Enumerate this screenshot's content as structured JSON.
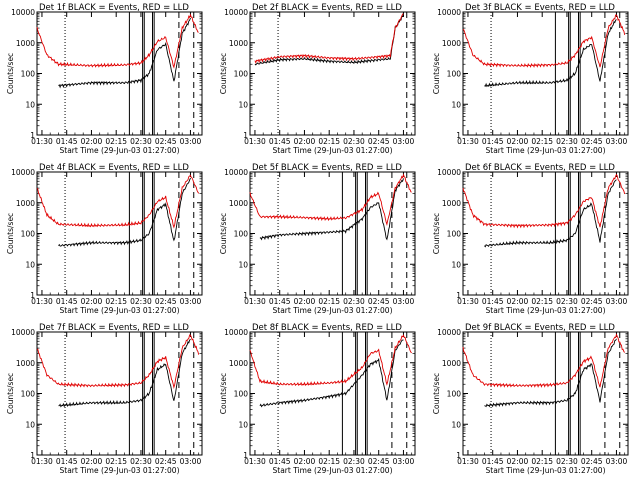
{
  "figure": {
    "x_tick_labels": [
      "01:30",
      "01:45",
      "02:00",
      "02:15",
      "02:30",
      "02:45",
      "03:00"
    ],
    "y_tick_labels": [
      "1",
      "10",
      "100",
      "1000",
      "10000"
    ],
    "y_axis_label": "Counts/sec",
    "x_axis_label": "Start Time (29-Jun-03 01:27:00)",
    "series_colors": {
      "events": "#000000",
      "lld": "#e00000"
    }
  },
  "chart_data": [
    {
      "type": "line",
      "title": "Det 1f BLACK = Events, RED = LLD",
      "xlabel": "Start Time (29-Jun-03 01:27:00)",
      "ylabel": "Counts/sec",
      "x_unit": "time (hh:mm)",
      "xlim": [
        "01:27",
        "03:07"
      ],
      "ylim": [
        1,
        10000
      ],
      "y_scale": "log",
      "x_ticks": [
        "01:30",
        "01:45",
        "02:00",
        "02:15",
        "02:30",
        "02:45",
        "03:00"
      ],
      "y_ticks": [
        1,
        10,
        100,
        1000,
        10000
      ],
      "dotted_vline": "01:44",
      "solid_vlines": [
        "02:23",
        "02:31",
        "02:32",
        "02:37",
        "02:38"
      ],
      "dashed_vlines": [
        "02:53",
        "03:02"
      ],
      "series": [
        {
          "color": "black",
          "x": [
            "01:40",
            "02:00",
            "02:20",
            "02:30",
            "02:35",
            "02:40",
            "02:45",
            "02:50",
            "02:55",
            "03:00"
          ],
          "y": [
            40,
            50,
            50,
            60,
            100,
            600,
            900,
            55,
            2000,
            6000
          ]
        },
        {
          "color": "red",
          "x": [
            "01:27",
            "01:33",
            "01:40",
            "02:00",
            "02:20",
            "02:30",
            "02:35",
            "02:40",
            "02:45",
            "02:50",
            "02:55",
            "03:00",
            "03:05"
          ],
          "y": [
            3000,
            400,
            200,
            180,
            190,
            220,
            400,
            1100,
            1500,
            160,
            3000,
            8000,
            2000
          ]
        }
      ]
    },
    {
      "type": "line",
      "title": "Det 2f BLACK = Events, RED = LLD",
      "xlabel": "Start Time (29-Jun-03 01:27:00)",
      "ylabel": "Counts/sec",
      "x_unit": "time (hh:mm)",
      "xlim": [
        "01:27",
        "03:07"
      ],
      "ylim": [
        1,
        10000
      ],
      "y_scale": "log",
      "x_ticks": [
        "01:30",
        "01:45",
        "02:00",
        "02:15",
        "02:30",
        "02:45",
        "03:00"
      ],
      "y_ticks": [
        1,
        10,
        100,
        1000,
        10000
      ],
      "dotted_vline": "01:44",
      "solid_vlines": [],
      "dashed_vlines": [
        "03:02"
      ],
      "series": [
        {
          "color": "black",
          "x": [
            "01:30",
            "01:45",
            "02:00",
            "02:15",
            "02:30",
            "02:45",
            "02:52",
            "02:55",
            "03:00"
          ],
          "y": [
            200,
            280,
            300,
            250,
            230,
            280,
            300,
            3000,
            8000
          ]
        },
        {
          "color": "red",
          "x": [
            "01:30",
            "01:45",
            "02:00",
            "02:15",
            "02:30",
            "02:45",
            "02:52",
            "02:55",
            "03:00"
          ],
          "y": [
            250,
            350,
            380,
            320,
            300,
            350,
            380,
            3000,
            9000
          ]
        }
      ]
    },
    {
      "type": "line",
      "title": "Det 3f BLACK = Events, RED = LLD",
      "xlabel": "Start Time (29-Jun-03 01:27:00)",
      "ylabel": "Counts/sec",
      "x_unit": "time (hh:mm)",
      "xlim": [
        "01:27",
        "03:07"
      ],
      "ylim": [
        1,
        10000
      ],
      "y_scale": "log",
      "x_ticks": [
        "01:30",
        "01:45",
        "02:00",
        "02:15",
        "02:30",
        "02:45",
        "03:00"
      ],
      "y_ticks": [
        1,
        10,
        100,
        1000,
        10000
      ],
      "dotted_vline": "01:44",
      "solid_vlines": [
        "02:23",
        "02:31",
        "02:32",
        "02:37",
        "02:38"
      ],
      "dashed_vlines": [
        "02:53",
        "03:02"
      ],
      "series": [
        {
          "color": "black",
          "x": [
            "01:40",
            "02:00",
            "02:20",
            "02:30",
            "02:35",
            "02:40",
            "02:45",
            "02:50",
            "02:55",
            "03:00"
          ],
          "y": [
            40,
            50,
            50,
            60,
            100,
            600,
            900,
            55,
            2000,
            6000
          ]
        },
        {
          "color": "red",
          "x": [
            "01:27",
            "01:33",
            "01:40",
            "02:00",
            "02:20",
            "02:30",
            "02:35",
            "02:40",
            "02:45",
            "02:50",
            "02:55",
            "03:00",
            "03:05"
          ],
          "y": [
            3000,
            400,
            200,
            180,
            190,
            220,
            400,
            1100,
            1500,
            160,
            3000,
            8000,
            2000
          ]
        }
      ]
    },
    {
      "type": "line",
      "title": "Det 4f BLACK = Events, RED = LLD",
      "xlabel": "Start Time (29-Jun-03 01:27:00)",
      "ylabel": "Counts/sec",
      "x_unit": "time (hh:mm)",
      "xlim": [
        "01:27",
        "03:07"
      ],
      "ylim": [
        1,
        10000
      ],
      "y_scale": "log",
      "x_ticks": [
        "01:30",
        "01:45",
        "02:00",
        "02:15",
        "02:30",
        "02:45",
        "03:00"
      ],
      "y_ticks": [
        1,
        10,
        100,
        1000,
        10000
      ],
      "dotted_vline": "01:44",
      "solid_vlines": [
        "02:23",
        "02:31",
        "02:32",
        "02:37",
        "02:38"
      ],
      "dashed_vlines": [
        "02:53",
        "03:02"
      ],
      "series": [
        {
          "color": "black",
          "x": [
            "01:40",
            "02:00",
            "02:20",
            "02:30",
            "02:35",
            "02:40",
            "02:45",
            "02:50",
            "02:55",
            "03:00"
          ],
          "y": [
            40,
            50,
            50,
            60,
            100,
            600,
            900,
            55,
            2000,
            6000
          ]
        },
        {
          "color": "red",
          "x": [
            "01:27",
            "01:33",
            "01:40",
            "02:00",
            "02:20",
            "02:30",
            "02:35",
            "02:40",
            "02:45",
            "02:50",
            "02:55",
            "03:00",
            "03:05"
          ],
          "y": [
            3000,
            400,
            200,
            180,
            190,
            220,
            400,
            1100,
            1500,
            160,
            3000,
            8000,
            2000
          ]
        }
      ]
    },
    {
      "type": "line",
      "title": "Det 5f BLACK = Events, RED = LLD",
      "xlabel": "Start Time (29-Jun-03 01:27:00)",
      "ylabel": "Counts/sec",
      "x_unit": "time (hh:mm)",
      "xlim": [
        "01:27",
        "03:07"
      ],
      "ylim": [
        1,
        10000
      ],
      "y_scale": "log",
      "x_ticks": [
        "01:30",
        "01:45",
        "02:00",
        "02:15",
        "02:30",
        "02:45",
        "03:00"
      ],
      "y_ticks": [
        1,
        10,
        100,
        1000,
        10000
      ],
      "dotted_vline": "01:44",
      "solid_vlines": [
        "02:23",
        "02:31",
        "02:32",
        "02:37",
        "02:38"
      ],
      "dashed_vlines": [
        "02:53",
        "03:02"
      ],
      "series": [
        {
          "color": "black",
          "x": [
            "01:33",
            "01:45",
            "02:00",
            "02:15",
            "02:25",
            "02:35",
            "02:40",
            "02:45",
            "02:50",
            "02:55",
            "03:00"
          ],
          "y": [
            70,
            90,
            100,
            110,
            120,
            300,
            700,
            1000,
            60,
            2500,
            6000
          ]
        },
        {
          "color": "red",
          "x": [
            "01:27",
            "01:33",
            "01:45",
            "02:00",
            "02:15",
            "02:25",
            "02:35",
            "02:40",
            "02:45",
            "02:50",
            "02:55",
            "03:00",
            "03:05"
          ],
          "y": [
            2000,
            350,
            350,
            330,
            300,
            320,
            600,
            1500,
            2000,
            200,
            3000,
            8000,
            2000
          ]
        }
      ]
    },
    {
      "type": "line",
      "title": "Det 6f BLACK = Events, RED = LLD",
      "xlabel": "Start Time (29-Jun-03 01:27:00)",
      "ylabel": "Counts/sec",
      "x_unit": "time (hh:mm)",
      "xlim": [
        "01:27",
        "03:07"
      ],
      "ylim": [
        1,
        10000
      ],
      "y_scale": "log",
      "x_ticks": [
        "01:30",
        "01:45",
        "02:00",
        "02:15",
        "02:30",
        "02:45",
        "03:00"
      ],
      "y_ticks": [
        1,
        10,
        100,
        1000,
        10000
      ],
      "dotted_vline": "01:44",
      "solid_vlines": [
        "02:23",
        "02:31",
        "02:32",
        "02:37",
        "02:38"
      ],
      "dashed_vlines": [
        "02:53",
        "03:02"
      ],
      "series": [
        {
          "color": "black",
          "x": [
            "01:40",
            "02:00",
            "02:20",
            "02:30",
            "02:35",
            "02:40",
            "02:45",
            "02:50",
            "02:55",
            "03:00"
          ],
          "y": [
            40,
            50,
            50,
            60,
            100,
            600,
            900,
            55,
            2000,
            6000
          ]
        },
        {
          "color": "red",
          "x": [
            "01:27",
            "01:33",
            "01:40",
            "02:00",
            "02:20",
            "02:30",
            "02:35",
            "02:40",
            "02:45",
            "02:50",
            "02:55",
            "03:00",
            "03:05"
          ],
          "y": [
            3000,
            400,
            200,
            180,
            190,
            220,
            400,
            1100,
            1500,
            160,
            3000,
            8000,
            2000
          ]
        }
      ]
    },
    {
      "type": "line",
      "title": "Det 7f BLACK = Events, RED = LLD",
      "xlabel": "Start Time (29-Jun-03 01:27:00)",
      "ylabel": "Counts/sec",
      "x_unit": "time (hh:mm)",
      "xlim": [
        "01:27",
        "03:07"
      ],
      "ylim": [
        1,
        10000
      ],
      "y_scale": "log",
      "x_ticks": [
        "01:30",
        "01:45",
        "02:00",
        "02:15",
        "02:30",
        "02:45",
        "03:00"
      ],
      "y_ticks": [
        1,
        10,
        100,
        1000,
        10000
      ],
      "dotted_vline": "01:44",
      "solid_vlines": [
        "02:23",
        "02:31",
        "02:32",
        "02:37",
        "02:38"
      ],
      "dashed_vlines": [
        "02:53",
        "03:02"
      ],
      "series": [
        {
          "color": "black",
          "x": [
            "01:40",
            "02:00",
            "02:20",
            "02:30",
            "02:35",
            "02:40",
            "02:45",
            "02:50",
            "02:55",
            "03:00"
          ],
          "y": [
            40,
            50,
            50,
            60,
            100,
            600,
            900,
            55,
            2000,
            6000
          ]
        },
        {
          "color": "red",
          "x": [
            "01:27",
            "01:33",
            "01:40",
            "02:00",
            "02:20",
            "02:30",
            "02:35",
            "02:40",
            "02:45",
            "02:50",
            "02:55",
            "03:00",
            "03:05"
          ],
          "y": [
            3000,
            400,
            200,
            180,
            190,
            220,
            400,
            1100,
            1500,
            160,
            3000,
            8000,
            2000
          ]
        }
      ]
    },
    {
      "type": "line",
      "title": "Det 8f BLACK = Events, RED = LLD",
      "xlabel": "Start Time (29-Jun-03 01:27:00)",
      "ylabel": "Counts/sec",
      "x_unit": "time (hh:mm)",
      "xlim": [
        "01:27",
        "03:07"
      ],
      "ylim": [
        1,
        10000
      ],
      "y_scale": "log",
      "x_ticks": [
        "01:30",
        "01:45",
        "02:00",
        "02:15",
        "02:30",
        "02:45",
        "03:00"
      ],
      "y_ticks": [
        1,
        10,
        100,
        1000,
        10000
      ],
      "dotted_vline": "01:44",
      "solid_vlines": [
        "02:23",
        "02:31",
        "02:32",
        "02:37",
        "02:38"
      ],
      "dashed_vlines": [
        "02:53",
        "03:02"
      ],
      "series": [
        {
          "color": "black",
          "x": [
            "01:33",
            "01:45",
            "02:00",
            "02:15",
            "02:25",
            "02:35",
            "02:40",
            "02:45",
            "02:50",
            "02:55",
            "03:00"
          ],
          "y": [
            40,
            50,
            60,
            80,
            100,
            400,
            900,
            1200,
            60,
            2500,
            6000
          ]
        },
        {
          "color": "red",
          "x": [
            "01:27",
            "01:33",
            "01:45",
            "02:00",
            "02:15",
            "02:25",
            "02:35",
            "02:40",
            "02:45",
            "02:50",
            "02:55",
            "03:00",
            "03:05"
          ],
          "y": [
            2500,
            250,
            200,
            200,
            220,
            250,
            700,
            2000,
            2500,
            200,
            3000,
            8000,
            2000
          ]
        }
      ]
    },
    {
      "type": "line",
      "title": "Det 9f BLACK = Events, RED = LLD",
      "xlabel": "Start Time (29-Jun-03 01:27:00)",
      "ylabel": "Counts/sec",
      "x_unit": "time (hh:mm)",
      "xlim": [
        "01:27",
        "03:07"
      ],
      "ylim": [
        1,
        10000
      ],
      "y_scale": "log",
      "x_ticks": [
        "01:30",
        "01:45",
        "02:00",
        "02:15",
        "02:30",
        "02:45",
        "03:00"
      ],
      "y_ticks": [
        1,
        10,
        100,
        1000,
        10000
      ],
      "dotted_vline": "01:44",
      "solid_vlines": [
        "02:23",
        "02:31",
        "02:32",
        "02:37",
        "02:38"
      ],
      "dashed_vlines": [
        "02:53",
        "03:02"
      ],
      "series": [
        {
          "color": "black",
          "x": [
            "01:40",
            "02:00",
            "02:20",
            "02:30",
            "02:35",
            "02:40",
            "02:45",
            "02:50",
            "02:55",
            "03:00"
          ],
          "y": [
            40,
            50,
            50,
            60,
            100,
            600,
            900,
            55,
            2000,
            6000
          ]
        },
        {
          "color": "red",
          "x": [
            "01:27",
            "01:33",
            "01:40",
            "02:00",
            "02:20",
            "02:30",
            "02:35",
            "02:40",
            "02:45",
            "02:50",
            "02:55",
            "03:00",
            "03:05"
          ],
          "y": [
            3000,
            400,
            200,
            180,
            190,
            220,
            400,
            1100,
            1500,
            160,
            3000,
            8000,
            2000
          ]
        }
      ]
    }
  ]
}
